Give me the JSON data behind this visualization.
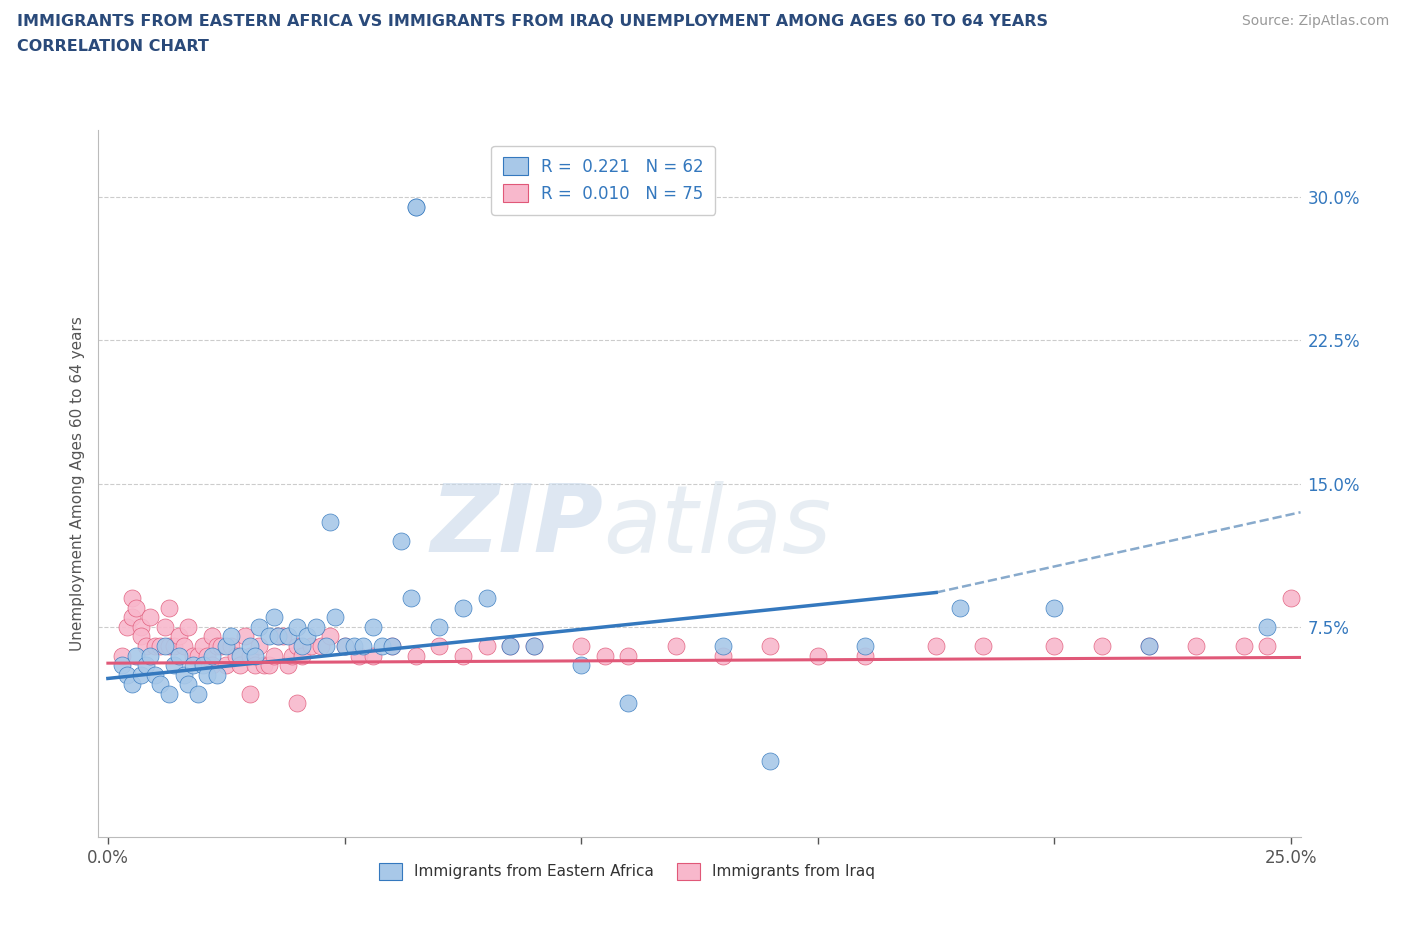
{
  "title_line1": "IMMIGRANTS FROM EASTERN AFRICA VS IMMIGRANTS FROM IRAQ UNEMPLOYMENT AMONG AGES 60 TO 64 YEARS",
  "title_line2": "CORRELATION CHART",
  "source_text": "Source: ZipAtlas.com",
  "ylabel": "Unemployment Among Ages 60 to 64 years",
  "xlim": [
    -0.002,
    0.252
  ],
  "ylim": [
    -0.035,
    0.335
  ],
  "xticks": [
    0.0,
    0.05,
    0.1,
    0.15,
    0.2,
    0.25
  ],
  "xticklabels": [
    "0.0%",
    "",
    "",
    "",
    "",
    "25.0%"
  ],
  "yticks_right": [
    0.0,
    0.075,
    0.15,
    0.225,
    0.3
  ],
  "yticklabels_right": [
    "",
    "7.5%",
    "15.0%",
    "22.5%",
    "30.0%"
  ],
  "legend_r1": "R =  0.221   N = 62",
  "legend_r2": "R =  0.010   N = 75",
  "watermark_zip": "ZIP",
  "watermark_atlas": "atlas",
  "color_blue": "#a8c8e8",
  "color_blue_line": "#3478be",
  "color_pink": "#f8b8cc",
  "color_pink_line": "#e05878",
  "color_dashed": "#88aacc",
  "blue_scatter_x": [
    0.003,
    0.004,
    0.005,
    0.006,
    0.007,
    0.008,
    0.009,
    0.01,
    0.011,
    0.012,
    0.013,
    0.014,
    0.015,
    0.016,
    0.017,
    0.018,
    0.019,
    0.02,
    0.021,
    0.022,
    0.023,
    0.025,
    0.026,
    0.028,
    0.03,
    0.031,
    0.032,
    0.034,
    0.035,
    0.036,
    0.038,
    0.04,
    0.041,
    0.042,
    0.044,
    0.046,
    0.047,
    0.048,
    0.05,
    0.052,
    0.054,
    0.056,
    0.058,
    0.06,
    0.062,
    0.064,
    0.065,
    0.065,
    0.07,
    0.075,
    0.08,
    0.085,
    0.09,
    0.1,
    0.11,
    0.13,
    0.14,
    0.16,
    0.18,
    0.2,
    0.22,
    0.245
  ],
  "blue_scatter_y": [
    0.055,
    0.05,
    0.045,
    0.06,
    0.05,
    0.055,
    0.06,
    0.05,
    0.045,
    0.065,
    0.04,
    0.055,
    0.06,
    0.05,
    0.045,
    0.055,
    0.04,
    0.055,
    0.05,
    0.06,
    0.05,
    0.065,
    0.07,
    0.06,
    0.065,
    0.06,
    0.075,
    0.07,
    0.08,
    0.07,
    0.07,
    0.075,
    0.065,
    0.07,
    0.075,
    0.065,
    0.13,
    0.08,
    0.065,
    0.065,
    0.065,
    0.075,
    0.065,
    0.065,
    0.12,
    0.09,
    0.295,
    0.295,
    0.075,
    0.085,
    0.09,
    0.065,
    0.065,
    0.055,
    0.035,
    0.065,
    0.005,
    0.065,
    0.085,
    0.085,
    0.065,
    0.075
  ],
  "pink_scatter_x": [
    0.003,
    0.004,
    0.005,
    0.005,
    0.006,
    0.007,
    0.007,
    0.008,
    0.009,
    0.01,
    0.011,
    0.012,
    0.013,
    0.013,
    0.014,
    0.015,
    0.016,
    0.017,
    0.018,
    0.019,
    0.02,
    0.021,
    0.022,
    0.022,
    0.023,
    0.024,
    0.025,
    0.026,
    0.027,
    0.028,
    0.029,
    0.03,
    0.031,
    0.032,
    0.033,
    0.034,
    0.035,
    0.036,
    0.037,
    0.038,
    0.039,
    0.04,
    0.041,
    0.043,
    0.045,
    0.047,
    0.05,
    0.053,
    0.056,
    0.06,
    0.065,
    0.07,
    0.075,
    0.08,
    0.085,
    0.09,
    0.1,
    0.105,
    0.11,
    0.12,
    0.13,
    0.14,
    0.15,
    0.16,
    0.175,
    0.185,
    0.2,
    0.21,
    0.22,
    0.23,
    0.24,
    0.245,
    0.25,
    0.03,
    0.04
  ],
  "pink_scatter_y": [
    0.06,
    0.075,
    0.08,
    0.09,
    0.085,
    0.075,
    0.07,
    0.065,
    0.08,
    0.065,
    0.065,
    0.075,
    0.085,
    0.065,
    0.065,
    0.07,
    0.065,
    0.075,
    0.06,
    0.06,
    0.065,
    0.06,
    0.055,
    0.07,
    0.065,
    0.065,
    0.055,
    0.065,
    0.06,
    0.055,
    0.07,
    0.06,
    0.055,
    0.065,
    0.055,
    0.055,
    0.06,
    0.07,
    0.07,
    0.055,
    0.06,
    0.065,
    0.06,
    0.065,
    0.065,
    0.07,
    0.065,
    0.06,
    0.06,
    0.065,
    0.06,
    0.065,
    0.06,
    0.065,
    0.065,
    0.065,
    0.065,
    0.06,
    0.06,
    0.065,
    0.06,
    0.065,
    0.06,
    0.06,
    0.065,
    0.065,
    0.065,
    0.065,
    0.065,
    0.065,
    0.065,
    0.065,
    0.09,
    0.04,
    0.035
  ],
  "blue_line_x0": 0.0,
  "blue_line_x1": 0.175,
  "blue_line_y0": 0.048,
  "blue_line_y1": 0.093,
  "dashed_line_x0": 0.175,
  "dashed_line_x1": 0.252,
  "dashed_line_y0": 0.093,
  "dashed_line_y1": 0.135,
  "pink_line_x0": 0.0,
  "pink_line_x1": 0.252,
  "pink_line_y0": 0.056,
  "pink_line_y1": 0.059
}
